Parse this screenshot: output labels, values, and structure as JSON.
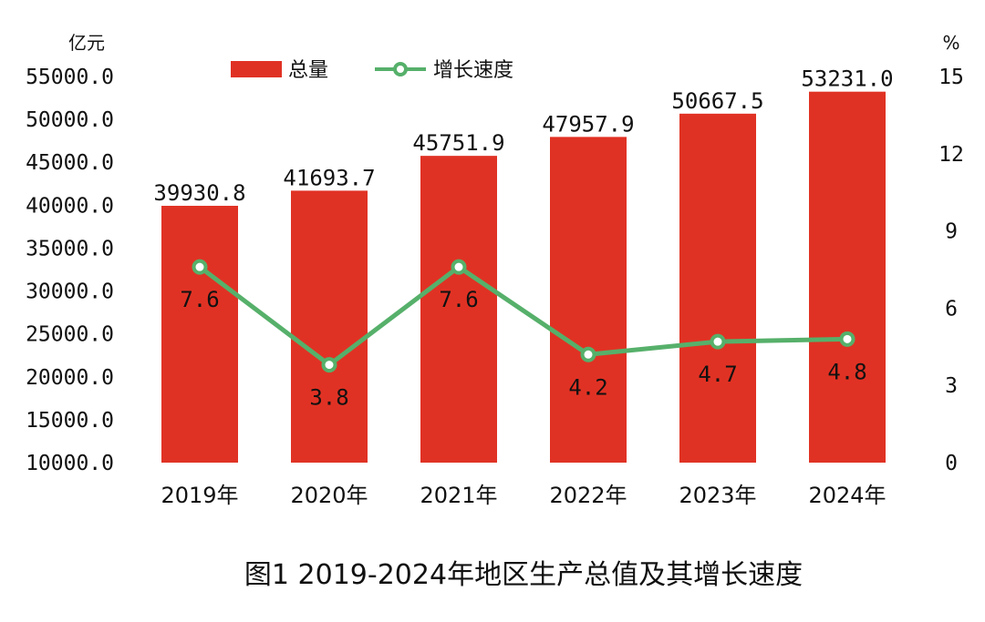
{
  "chart_data": {
    "type": "bar",
    "title": "图1   2019-2024年地区生产总值及其增长速度",
    "categories": [
      "2019年",
      "2020年",
      "2021年",
      "2022年",
      "2023年",
      "2024年"
    ],
    "series": [
      {
        "name": "总量",
        "type": "bar",
        "axis": "left",
        "color": "#e03224",
        "values": [
          39930.8,
          41693.7,
          45751.9,
          47957.9,
          50667.5,
          53231.0
        ],
        "labels": [
          "39930.8",
          "41693.7",
          "45751.9",
          "47957.9",
          "50667.5",
          "53231.0"
        ]
      },
      {
        "name": "增长速度",
        "type": "line",
        "axis": "right",
        "color": "#56b06a",
        "values": [
          7.6,
          3.8,
          7.6,
          4.2,
          4.7,
          4.8
        ],
        "labels": [
          "7.6",
          "3.8",
          "7.6",
          "4.2",
          "4.7",
          "4.8"
        ]
      }
    ],
    "yaxis_left": {
      "unit": "亿元",
      "min": 10000,
      "max": 55000,
      "ticks": [
        10000,
        15000,
        20000,
        25000,
        30000,
        35000,
        40000,
        45000,
        50000,
        55000
      ],
      "tick_labels": [
        "10000.0",
        "15000.0",
        "20000.0",
        "25000.0",
        "30000.0",
        "35000.0",
        "40000.0",
        "45000.0",
        "50000.0",
        "55000.0"
      ]
    },
    "yaxis_right": {
      "unit": "%",
      "min": 0,
      "max": 15,
      "ticks": [
        0,
        3,
        6,
        9,
        12,
        15
      ],
      "tick_labels": [
        "0",
        "3",
        "6",
        "9",
        "12",
        "15"
      ]
    },
    "grid": false,
    "legend_position": "top"
  }
}
